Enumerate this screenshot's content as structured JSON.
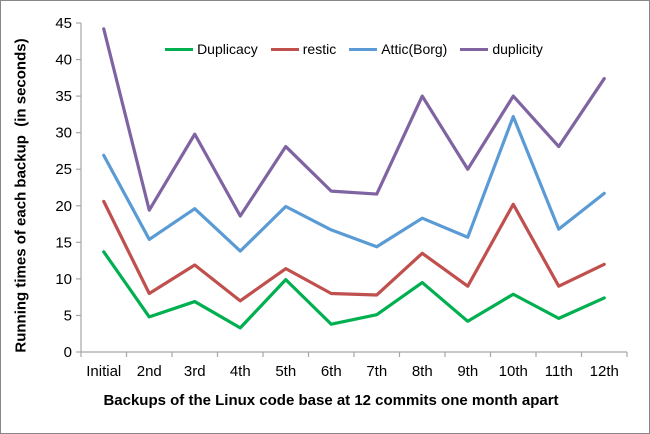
{
  "chart_data": {
    "type": "line",
    "title": "",
    "xlabel": "Backups of the Linux code base at 12 commits one month apart",
    "ylabel": "Running times of each backup  (in seconds)",
    "categories": [
      "Initial",
      "2nd",
      "3rd",
      "4th",
      "5th",
      "6th",
      "7th",
      "8th",
      "9th",
      "10th",
      "11th",
      "12th"
    ],
    "series": [
      {
        "name": "Duplicacy",
        "color": "#00B050",
        "values": [
          13.7,
          4.8,
          6.9,
          3.3,
          9.9,
          3.8,
          5.1,
          9.5,
          4.2,
          7.9,
          4.6,
          7.4
        ]
      },
      {
        "name": "restic",
        "color": "#C0504D",
        "values": [
          20.6,
          8.0,
          11.9,
          7.0,
          11.4,
          8.0,
          7.8,
          13.5,
          9.0,
          20.2,
          9.0,
          12.0
        ]
      },
      {
        "name": "Attic(Borg)",
        "color": "#5B9BD5",
        "values": [
          26.9,
          15.4,
          19.6,
          13.8,
          19.9,
          16.7,
          14.4,
          18.3,
          15.7,
          32.2,
          16.8,
          21.7
        ]
      },
      {
        "name": "duplicity",
        "color": "#8064A2",
        "values": [
          44.2,
          19.4,
          29.8,
          18.6,
          28.1,
          22.0,
          21.6,
          35.0,
          25.0,
          35.0,
          28.1,
          37.4
        ]
      }
    ],
    "ylim": [
      0,
      45
    ],
    "ytick_step": 5,
    "legend_position": "top",
    "grid": false,
    "axis_color": "#A6A6A6",
    "text_color": "#000000",
    "line_width": 3.2
  }
}
